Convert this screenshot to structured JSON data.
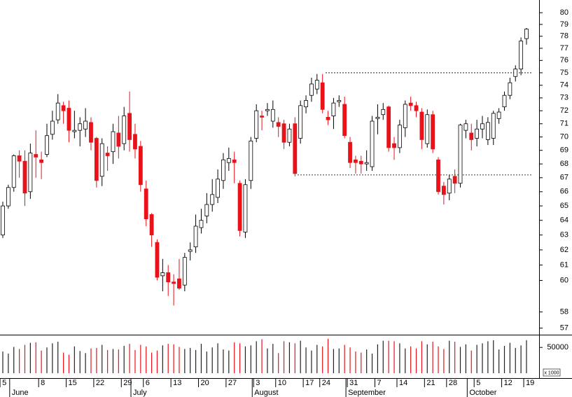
{
  "chart_data": {
    "type": "candlestick",
    "categories": [
      "5",
      null,
      null,
      null,
      null,
      null,
      null,
      "8",
      null,
      null,
      null,
      null,
      "15",
      null,
      null,
      null,
      null,
      "22",
      null,
      null,
      null,
      null,
      "29",
      null,
      null,
      null,
      "6",
      null,
      null,
      null,
      null,
      "13",
      null,
      null,
      null,
      null,
      "20",
      null,
      null,
      null,
      null,
      "27",
      null,
      null,
      null,
      null,
      "3",
      null,
      null,
      null,
      "10",
      null,
      null,
      null,
      null,
      "17",
      null,
      null,
      "24",
      null,
      null,
      null,
      null,
      "31",
      null,
      null,
      null,
      null,
      "7",
      null,
      null,
      null,
      "14",
      null,
      null,
      null,
      null,
      "21",
      null,
      null,
      null,
      "28",
      null,
      null,
      null,
      null,
      "5",
      null,
      null,
      null,
      null,
      "12",
      null,
      null,
      null,
      "19"
    ],
    "month_labels": [
      null,
      null,
      "June",
      null,
      null,
      null,
      null,
      null,
      null,
      null,
      null,
      null,
      null,
      null,
      null,
      null,
      null,
      null,
      null,
      null,
      null,
      null,
      null,
      null,
      "July",
      null,
      null,
      null,
      null,
      null,
      null,
      null,
      null,
      null,
      null,
      null,
      null,
      null,
      null,
      null,
      null,
      null,
      null,
      null,
      null,
      null,
      "August",
      null,
      null,
      null,
      null,
      null,
      null,
      null,
      null,
      null,
      null,
      null,
      null,
      null,
      null,
      null,
      null,
      "September",
      null,
      null,
      null,
      null,
      null,
      null,
      null,
      null,
      null,
      null,
      null,
      null,
      null,
      null,
      null,
      null,
      null,
      null,
      null,
      null,
      null,
      "October",
      null,
      null,
      null,
      null,
      null,
      null,
      null,
      null,
      null,
      null
    ],
    "open": [
      63,
      65,
      66.3,
      68.6,
      68.2,
      66,
      68.7,
      68.3,
      68.7,
      70.2,
      71.3,
      72.4,
      72.2,
      70.4,
      70.5,
      70.6,
      71.1,
      69.9,
      67.1,
      68.8,
      68.9,
      70.3,
      69.5,
      71.8,
      70.2,
      69.3,
      66.2,
      64.4,
      62.5,
      60.3,
      60.5,
      59.9,
      60.1,
      59.7,
      61.9,
      62.2,
      63.5,
      64.3,
      65.1,
      65.6,
      66.8,
      68.1,
      68.3,
      66.6,
      63.2,
      66.8,
      69.9,
      71.6,
      72,
      71.2,
      71.1,
      71,
      69.6,
      71,
      69.9,
      72.3,
      73.2,
      73.7,
      74.2,
      71.5,
      71.6,
      72.7,
      72.5,
      69.6,
      68.3,
      68.2,
      68,
      67.8,
      71.4,
      71.7,
      72.3,
      69.5,
      69.2,
      70.7,
      72.6,
      72.4,
      71.9,
      69.5,
      71.7,
      68.3,
      66.4,
      65.9,
      67.1,
      66.6,
      70.5,
      70.3,
      69.9,
      70.6,
      69.8,
      69.9,
      71.4,
      72.3,
      73.2,
      74.7,
      75.3,
      77.8
    ],
    "high": [
      65.3,
      66.5,
      68.7,
      69,
      69,
      69.5,
      70.5,
      68.9,
      71,
      72,
      73.3,
      72.7,
      72.8,
      72,
      71.5,
      72.2,
      71.5,
      70,
      69.9,
      69.3,
      71,
      71.6,
      72.3,
      73.5,
      71,
      69.7,
      66.8,
      64.5,
      62.7,
      61.4,
      61,
      60.4,
      61.4,
      61.8,
      62.5,
      64.4,
      64.8,
      65.9,
      66.9,
      67.6,
      68.8,
      69.2,
      68.9,
      66.8,
      66.9,
      70,
      72.5,
      72,
      72.6,
      72.8,
      71.5,
      71.3,
      71,
      71.5,
      72.8,
      73.2,
      74.6,
      74.9,
      74.9,
      72,
      73,
      73.2,
      73.1,
      70,
      68.6,
      68.6,
      69,
      71.6,
      72.5,
      72.6,
      72.4,
      70,
      71.3,
      72.8,
      73.1,
      72.7,
      72.2,
      72.1,
      72,
      68.5,
      66.7,
      67.2,
      67.6,
      71,
      71.3,
      71,
      71.3,
      71.6,
      71.5,
      72,
      72.2,
      73.5,
      74.6,
      75.6,
      77.9,
      78.7
    ],
    "low": [
      62.8,
      64.8,
      66,
      67,
      65,
      65.5,
      67,
      66.9,
      68.5,
      69.8,
      71,
      71,
      69.6,
      69.9,
      69.3,
      70,
      69,
      66.3,
      66.4,
      67.5,
      68,
      68.4,
      69,
      68.9,
      68.4,
      66,
      63.6,
      62.2,
      60,
      59.3,
      59,
      58.4,
      59.4,
      59.3,
      61.3,
      61.8,
      63.1,
      63.8,
      64.6,
      65.2,
      66.2,
      67.5,
      66.6,
      62.9,
      62.8,
      66.2,
      69.6,
      70.5,
      71.6,
      70.7,
      70,
      69.1,
      69.3,
      67.1,
      69.5,
      71.8,
      72.7,
      73.3,
      71.8,
      70.9,
      70.6,
      72.3,
      69.9,
      67.7,
      67.3,
      67.3,
      67.5,
      67.5,
      70.2,
      71.3,
      68.9,
      68.3,
      68.8,
      70,
      72,
      71.5,
      69.1,
      69.2,
      68.8,
      65.8,
      65.1,
      65.4,
      65.9,
      66.3,
      69.9,
      69,
      69.3,
      69.9,
      69.4,
      69.4,
      71,
      72,
      72.9,
      74.3,
      74.8,
      77.3
    ],
    "close": [
      65,
      66.3,
      68.6,
      68.2,
      65.9,
      68.8,
      68.5,
      68.1,
      70.1,
      71.2,
      72.6,
      72,
      70.5,
      70.5,
      71,
      71.2,
      69.6,
      66.8,
      69.5,
      68.6,
      70.4,
      69.3,
      71.6,
      69.8,
      69.1,
      66.5,
      64.1,
      63,
      60.2,
      60.5,
      59.9,
      59.8,
      59.5,
      61.5,
      62,
      63.6,
      64,
      65.1,
      65.8,
      66.9,
      68.3,
      68.4,
      68.1,
      63.3,
      66.5,
      69.7,
      72,
      71.5,
      72.1,
      72.1,
      70.8,
      69.6,
      70.6,
      67.3,
      72.4,
      72.8,
      74.1,
      74.4,
      72.1,
      71.3,
      72.6,
      72.8,
      70.1,
      68.1,
      68.1,
      68,
      68.1,
      71.2,
      71.5,
      72.1,
      69.2,
      69.2,
      70.9,
      72.5,
      72.4,
      72,
      69.8,
      71.7,
      69.1,
      66,
      65.8,
      66.9,
      66.6,
      70.9,
      71,
      69.8,
      70.6,
      71,
      71.1,
      71.8,
      71.9,
      73.2,
      74.2,
      75.3,
      77.6,
      78.6
    ],
    "up_color": "#ffffff",
    "down_color": "#e8121a",
    "ylim": [
      56.6,
      81.1
    ],
    "log_y": true,
    "yticks": [
      80,
      79,
      78,
      77,
      76,
      75,
      74,
      73,
      72,
      71,
      70,
      69,
      68,
      67,
      66,
      65,
      64,
      63,
      62,
      61,
      60,
      58,
      57
    ],
    "reference_lines": [
      75,
      67.2
    ],
    "volume": {
      "values": [
        42000,
        38000,
        51000,
        47000,
        55000,
        59000,
        60000,
        44000,
        50000,
        58000,
        61000,
        40000,
        36000,
        52000,
        43000,
        39000,
        48000,
        49000,
        55000,
        45000,
        47000,
        46000,
        53000,
        57000,
        45000,
        55000,
        52000,
        40000,
        44000,
        54000,
        57000,
        56000,
        51000,
        47000,
        49000,
        45000,
        57000,
        42000,
        50000,
        58000,
        46000,
        44000,
        60000,
        58000,
        52000,
        54000,
        62000,
        66000,
        48000,
        57000,
        39000,
        62000,
        60000,
        58000,
        63000,
        50000,
        44000,
        55000,
        52000,
        67000,
        47000,
        48000,
        55000,
        50000,
        42000,
        40000,
        46000,
        38000,
        56000,
        63000,
        63000,
        62000,
        58000,
        48000,
        52000,
        48000,
        62000,
        56000,
        61000,
        52000,
        47000,
        63000,
        61000,
        51000,
        56000,
        44000,
        55000,
        58000,
        62000,
        64000,
        46000,
        53000,
        59000,
        49000,
        54000,
        64000
      ],
      "ylim": [
        0,
        72000
      ],
      "yticks": [
        50000
      ],
      "unit_label": "x 1000"
    }
  }
}
